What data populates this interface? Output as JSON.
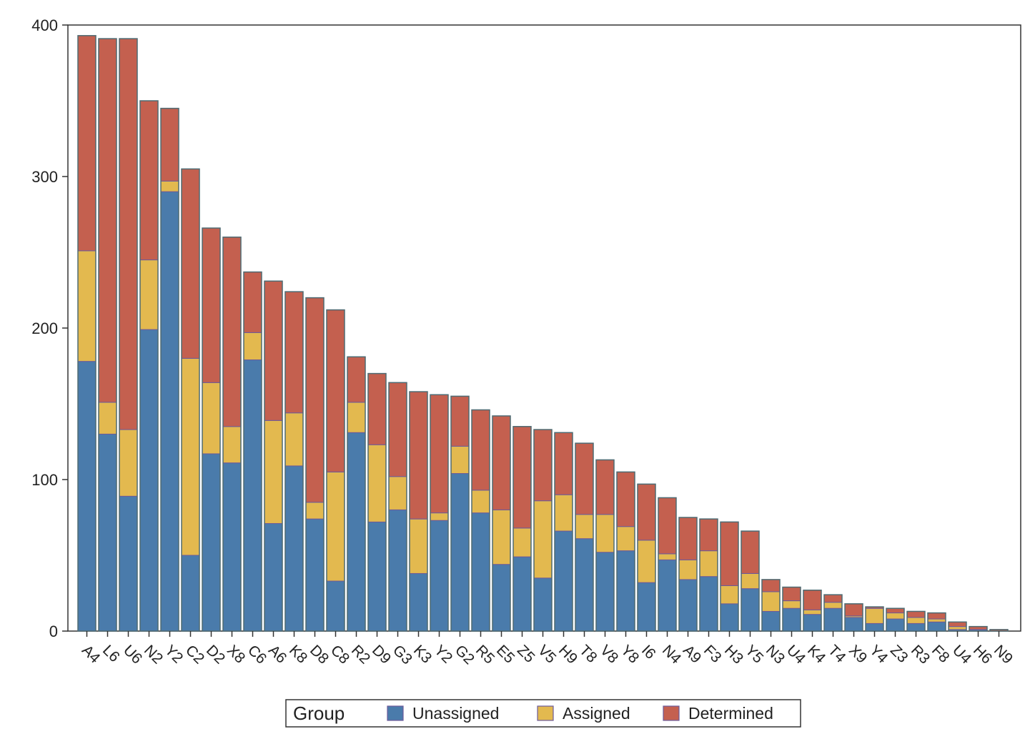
{
  "chart_data": {
    "type": "bar",
    "stacked": true,
    "title": "",
    "xlabel": "",
    "ylabel": "",
    "ylim": [
      0,
      400
    ],
    "yticks": [
      0,
      100,
      200,
      300,
      400
    ],
    "grid": false,
    "legend": {
      "title": "Group",
      "placement": "bottom-center"
    },
    "categories": [
      "A4",
      "L6",
      "U6",
      "N2",
      "Y2",
      "C2",
      "D2",
      "X8",
      "C6",
      "A6",
      "K8",
      "D8",
      "C8",
      "R2",
      "D9",
      "G3",
      "K3",
      "Y2",
      "G2",
      "R5",
      "E5",
      "Z5",
      "V5",
      "H9",
      "T8",
      "V8",
      "Y8",
      "I6",
      "N4",
      "A9",
      "F3",
      "H3",
      "Y5",
      "N3",
      "U4",
      "K4",
      "T4",
      "X9",
      "Y4",
      "Z3",
      "R3",
      "F8",
      "U4",
      "H6",
      "N9"
    ],
    "series": [
      {
        "name": "Unassigned",
        "color": "#4a7bab",
        "values": [
          178,
          130,
          89,
          199,
          290,
          50,
          117,
          111,
          179,
          71,
          109,
          74,
          33,
          131,
          72,
          80,
          38,
          73,
          104,
          78,
          44,
          49,
          35,
          66,
          61,
          52,
          53,
          32,
          47,
          34,
          36,
          18,
          28,
          13,
          15,
          11,
          15,
          9,
          5,
          8,
          5,
          6,
          1,
          1,
          0
        ]
      },
      {
        "name": "Assigned",
        "color": "#e3b94f",
        "values": [
          73,
          21,
          44,
          46,
          7,
          130,
          47,
          24,
          18,
          68,
          35,
          11,
          72,
          20,
          51,
          22,
          36,
          5,
          18,
          15,
          36,
          19,
          51,
          24,
          16,
          25,
          16,
          28,
          4,
          13,
          17,
          12,
          10,
          13,
          5,
          3,
          4,
          1,
          10,
          4,
          4,
          2,
          2,
          0,
          0
        ]
      },
      {
        "name": "Determined",
        "color": "#c4604f",
        "values": [
          142,
          240,
          258,
          105,
          48,
          125,
          102,
          125,
          40,
          92,
          80,
          135,
          107,
          30,
          47,
          62,
          84,
          78,
          33,
          53,
          62,
          67,
          47,
          41,
          47,
          36,
          36,
          37,
          37,
          28,
          21,
          42,
          28,
          8,
          9,
          13,
          5,
          8,
          1,
          3,
          4,
          4,
          3,
          2,
          1
        ]
      }
    ]
  }
}
